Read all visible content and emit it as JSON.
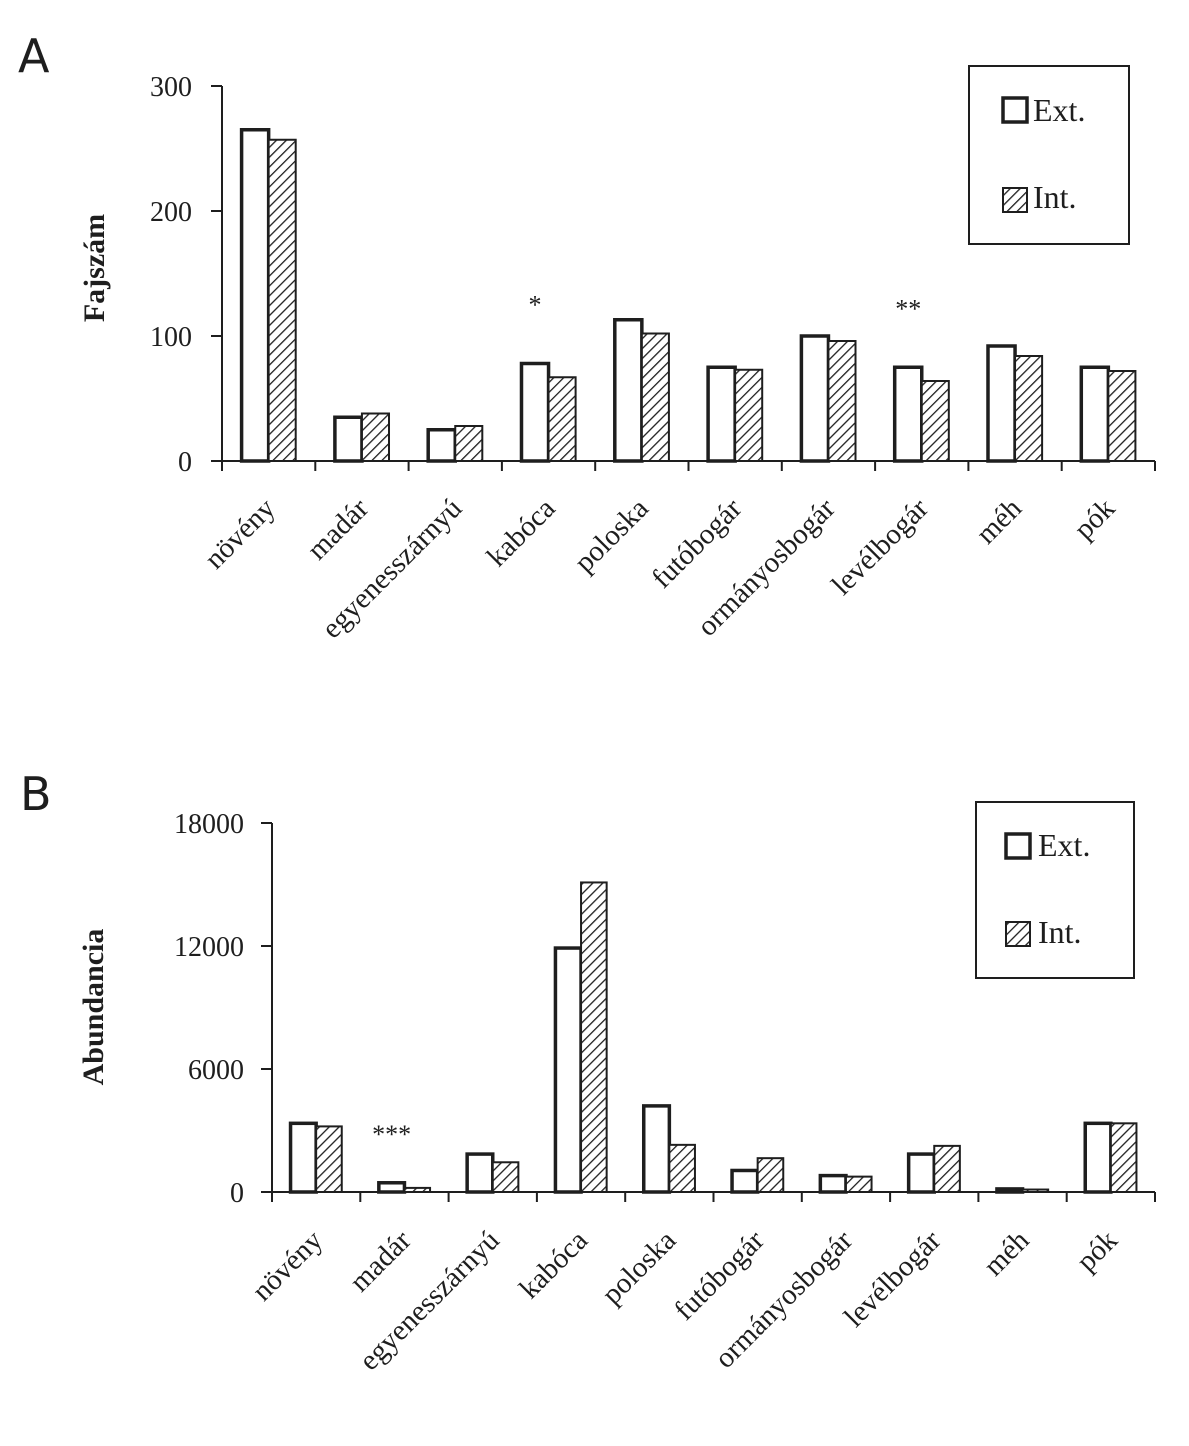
{
  "chart_data": [
    {
      "panel": "A",
      "type": "bar",
      "ylabel": "Fajszám",
      "ylim": [
        0,
        300
      ],
      "yticks": [
        "0",
        "100",
        "200",
        "300"
      ],
      "categories": [
        "növény",
        "madár",
        "egyenesszárnyú",
        "kabóca",
        "poloska",
        "futóbogár",
        "ormányosbogár",
        "levélbogár",
        "méh",
        "pók"
      ],
      "series": [
        {
          "name": "Ext.",
          "values": [
            265,
            35,
            25,
            78,
            113,
            75,
            100,
            75,
            92,
            75
          ]
        },
        {
          "name": "Int.",
          "values": [
            257,
            38,
            28,
            67,
            102,
            73,
            96,
            64,
            84,
            72
          ]
        }
      ],
      "annotations": [
        {
          "category": "kabóca",
          "text": "*"
        },
        {
          "category": "levélbogár",
          "text": "**"
        }
      ],
      "legend": {
        "position": "top-right",
        "entries": [
          "Ext.",
          "Int."
        ]
      }
    },
    {
      "panel": "B",
      "type": "bar",
      "ylabel": "Abundancia",
      "ylim": [
        0,
        18000
      ],
      "yticks": [
        "0",
        "6000",
        "12000",
        "18000"
      ],
      "categories": [
        "növény",
        "madár",
        "egyenesszárnyú",
        "kabóca",
        "poloska",
        "futóbogár",
        "ormányosbogár",
        "levélbogár",
        "méh",
        "pók"
      ],
      "series": [
        {
          "name": "Ext.",
          "values": [
            3350,
            450,
            1850,
            11900,
            4200,
            1050,
            800,
            1850,
            150,
            3350
          ]
        },
        {
          "name": "Int.",
          "values": [
            3200,
            200,
            1450,
            15100,
            2300,
            1650,
            750,
            2250,
            120,
            3350
          ]
        }
      ],
      "annotations": [
        {
          "category": "madár",
          "text": "***"
        }
      ],
      "legend": {
        "position": "top-right",
        "entries": [
          "Ext.",
          "Int."
        ]
      }
    }
  ]
}
